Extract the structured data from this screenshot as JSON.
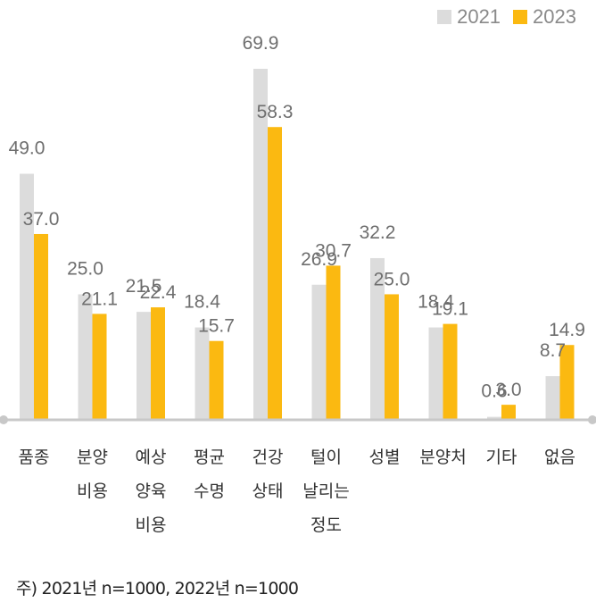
{
  "chart_data": {
    "type": "bar",
    "categories": [
      [
        "품종"
      ],
      [
        "분양",
        "비용"
      ],
      [
        "예상",
        "양육",
        "비용"
      ],
      [
        "평균",
        "수명"
      ],
      [
        "건강",
        "상태"
      ],
      [
        "털이",
        "날리는",
        "정도"
      ],
      [
        "성별"
      ],
      [
        "분양처"
      ],
      [
        "기타"
      ],
      [
        "없음"
      ]
    ],
    "series": [
      {
        "name": "2021",
        "color": "#dcdcdc",
        "values": [
          49.0,
          25.0,
          21.5,
          18.4,
          69.9,
          26.9,
          32.2,
          18.4,
          0.6,
          8.7
        ]
      },
      {
        "name": "2023",
        "color": "#fbb911",
        "values": [
          37.0,
          21.1,
          22.4,
          15.7,
          58.3,
          30.7,
          25.0,
          19.1,
          3.0,
          14.9
        ]
      }
    ],
    "ylim": [
      0,
      70
    ],
    "value_labels": true
  },
  "footnote": "주) 2021년 n=1000, 2022년 n=1000",
  "colors": {
    "axis": "#c8c8c8",
    "label": "#6e6e6e",
    "category": "#333333"
  }
}
